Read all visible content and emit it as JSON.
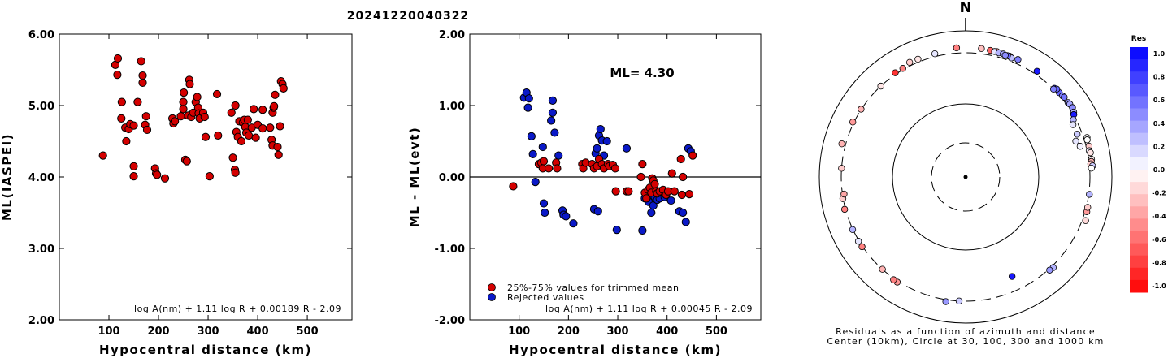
{
  "title": "20241220040322",
  "colors": {
    "accepted": "#d40000",
    "rejected": "#0a19c8",
    "res_pos": "#0000ff",
    "res_neg": "#ff0000"
  },
  "chart_data": [
    {
      "type": "scatter",
      "ylabel": "ML(IASPEI)",
      "xlabel": "Hypocentral distance (km)",
      "xlim": [
        0,
        590
      ],
      "ylim": [
        2.0,
        6.0
      ],
      "xticks": [
        "100",
        "200",
        "300",
        "400",
        "500"
      ],
      "yticks": [
        "2.00",
        "3.00",
        "4.00",
        "5.00",
        "6.00"
      ],
      "formula": "log A(nm) + 1.11 log R + 0.00189 R - 2.09",
      "points": [
        [
          88,
          4.3
        ],
        [
          113,
          5.57
        ],
        [
          118,
          5.66
        ],
        [
          117,
          5.43
        ],
        [
          126,
          5.05
        ],
        [
          125,
          4.82
        ],
        [
          133,
          4.69
        ],
        [
          135,
          4.5
        ],
        [
          140,
          4.67
        ],
        [
          143,
          4.74
        ],
        [
          150,
          4.72
        ],
        [
          150,
          4.15
        ],
        [
          150,
          4.01
        ],
        [
          158,
          5.05
        ],
        [
          165,
          5.62
        ],
        [
          168,
          5.42
        ],
        [
          168,
          5.32
        ],
        [
          175,
          4.85
        ],
        [
          173,
          4.73
        ],
        [
          177,
          4.66
        ],
        [
          193,
          4.12
        ],
        [
          195,
          4.05
        ],
        [
          197,
          4.03
        ],
        [
          213,
          3.98
        ],
        [
          228,
          4.82
        ],
        [
          230,
          4.75
        ],
        [
          233,
          4.78
        ],
        [
          245,
          4.85
        ],
        [
          250,
          5.05
        ],
        [
          250,
          4.95
        ],
        [
          251,
          5.18
        ],
        [
          254,
          4.24
        ],
        [
          257,
          4.22
        ],
        [
          262,
          5.36
        ],
        [
          263,
          5.3
        ],
        [
          260,
          4.86
        ],
        [
          266,
          4.84
        ],
        [
          270,
          4.9
        ],
        [
          275,
          5.05
        ],
        [
          278,
          5.12
        ],
        [
          280,
          4.97
        ],
        [
          281,
          4.89
        ],
        [
          283,
          4.82
        ],
        [
          290,
          4.9
        ],
        [
          293,
          4.84
        ],
        [
          295,
          4.56
        ],
        [
          303,
          4.01
        ],
        [
          318,
          5.16
        ],
        [
          320,
          4.58
        ],
        [
          347,
          4.9
        ],
        [
          350,
          4.27
        ],
        [
          354,
          4.1
        ],
        [
          355,
          4.06
        ],
        [
          355,
          5.0
        ],
        [
          357,
          4.63
        ],
        [
          360,
          4.56
        ],
        [
          363,
          4.78
        ],
        [
          367,
          4.5
        ],
        [
          370,
          4.76
        ],
        [
          373,
          4.8
        ],
        [
          375,
          4.7
        ],
        [
          377,
          4.62
        ],
        [
          380,
          4.8
        ],
        [
          382,
          4.58
        ],
        [
          388,
          4.69
        ],
        [
          392,
          4.95
        ],
        [
          396,
          4.55
        ],
        [
          400,
          4.73
        ],
        [
          410,
          4.94
        ],
        [
          410,
          4.68
        ],
        [
          425,
          4.69
        ],
        [
          428,
          4.52
        ],
        [
          430,
          4.9
        ],
        [
          430,
          4.44
        ],
        [
          432,
          4.97
        ],
        [
          433,
          4.99
        ],
        [
          435,
          5.15
        ],
        [
          440,
          4.42
        ],
        [
          442,
          4.31
        ],
        [
          445,
          4.71
        ],
        [
          447,
          5.34
        ],
        [
          450,
          5.3
        ],
        [
          452,
          5.24
        ]
      ]
    },
    {
      "type": "scatter",
      "ylabel": "ML - ML(evt)",
      "xlabel": "Hypocentral distance (km)",
      "xlim": [
        0,
        590
      ],
      "ylim": [
        -2.0,
        2.0
      ],
      "xticks": [
        "100",
        "200",
        "300",
        "400",
        "500"
      ],
      "yticks": [
        "-2.00",
        "-1.00",
        "0.00",
        "1.00",
        "2.00"
      ],
      "ml_label": "ML=  4.30",
      "legend": [
        "25%-75% values for trimmed mean",
        "Rejected values"
      ],
      "formula": "log A(nm) + 1.11 log R + 0.00045 R - 2.09",
      "accepted": [
        [
          88,
          -0.13
        ],
        [
          140,
          0.18
        ],
        [
          145,
          0.2
        ],
        [
          150,
          0.22
        ],
        [
          148,
          0.12
        ],
        [
          160,
          0.12
        ],
        [
          175,
          0.2
        ],
        [
          177,
          0.12
        ],
        [
          228,
          0.18
        ],
        [
          230,
          0.12
        ],
        [
          235,
          0.2
        ],
        [
          248,
          0.18
        ],
        [
          252,
          0.12
        ],
        [
          258,
          0.15
        ],
        [
          262,
          0.25
        ],
        [
          268,
          0.18
        ],
        [
          272,
          0.12
        ],
        [
          280,
          0.18
        ],
        [
          283,
          0.15
        ],
        [
          290,
          0.17
        ],
        [
          295,
          0.12
        ],
        [
          296,
          -0.2
        ],
        [
          318,
          -0.2
        ],
        [
          322,
          -0.2
        ],
        [
          347,
          0.0
        ],
        [
          350,
          0.18
        ],
        [
          355,
          -0.22
        ],
        [
          358,
          -0.3
        ],
        [
          362,
          -0.18
        ],
        [
          365,
          -0.15
        ],
        [
          368,
          -0.22
        ],
        [
          370,
          -0.02
        ],
        [
          372,
          -0.05
        ],
        [
          375,
          -0.1
        ],
        [
          378,
          -0.2
        ],
        [
          380,
          -0.23
        ],
        [
          385,
          -0.2
        ],
        [
          392,
          -0.18
        ],
        [
          398,
          -0.25
        ],
        [
          402,
          -0.2
        ],
        [
          410,
          0.05
        ],
        [
          415,
          -0.2
        ],
        [
          428,
          0.25
        ],
        [
          430,
          -0.25
        ],
        [
          432,
          0.0
        ],
        [
          445,
          -0.24
        ],
        [
          452,
          0.3
        ]
      ],
      "rejected": [
        [
          110,
          1.11
        ],
        [
          115,
          1.18
        ],
        [
          118,
          0.97
        ],
        [
          120,
          1.1
        ],
        [
          125,
          0.57
        ],
        [
          128,
          0.32
        ],
        [
          133,
          -0.07
        ],
        [
          148,
          0.42
        ],
        [
          150,
          -0.37
        ],
        [
          152,
          -0.5
        ],
        [
          165,
          0.79
        ],
        [
          168,
          1.07
        ],
        [
          168,
          0.9
        ],
        [
          172,
          0.62
        ],
        [
          180,
          0.3
        ],
        [
          188,
          -0.47
        ],
        [
          190,
          -0.53
        ],
        [
          195,
          -0.55
        ],
        [
          210,
          -0.65
        ],
        [
          252,
          -0.45
        ],
        [
          255,
          0.33
        ],
        [
          258,
          0.4
        ],
        [
          260,
          -0.48
        ],
        [
          262,
          0.58
        ],
        [
          265,
          0.67
        ],
        [
          268,
          0.51
        ],
        [
          272,
          0.3
        ],
        [
          278,
          0.5
        ],
        [
          298,
          -0.74
        ],
        [
          318,
          0.4
        ],
        [
          350,
          -0.75
        ],
        [
          355,
          -0.3
        ],
        [
          360,
          -0.28
        ],
        [
          363,
          -0.35
        ],
        [
          368,
          -0.5
        ],
        [
          372,
          -0.4
        ],
        [
          375,
          -0.28
        ],
        [
          380,
          -0.32
        ],
        [
          385,
          -0.3
        ],
        [
          395,
          -0.28
        ],
        [
          408,
          -0.33
        ],
        [
          425,
          -0.48
        ],
        [
          432,
          -0.5
        ],
        [
          438,
          -0.63
        ],
        [
          443,
          0.4
        ],
        [
          448,
          0.36
        ]
      ]
    },
    {
      "type": "polar-scatter",
      "north_label": "N",
      "caption_lines": [
        "Residuals as a function of azimuth and distance",
        "Center (10km), Circle at 30, 100, 300 and 1000 km"
      ],
      "circles_km": [
        30,
        100,
        300,
        1000
      ],
      "colorbar": {
        "title": "Res",
        "ticks": [
          "1.0",
          "0.8",
          "0.6",
          "0.4",
          "0.2",
          "0.0",
          "-0.2",
          "-0.4",
          "-0.6",
          "-0.8",
          "-1.0"
        ]
      },
      "stations": [
        [
          -22,
          350,
          -0.1
        ],
        [
          -14,
          350,
          0.1
        ],
        [
          -26,
          360,
          -0.2
        ],
        [
          -4,
          400,
          -0.5
        ],
        [
          7,
          400,
          -0.25
        ],
        [
          11,
          390,
          -0.6
        ],
        [
          14,
          395,
          -0.4
        ],
        [
          20,
          380,
          -0.3
        ],
        [
          21,
          360,
          0.25
        ],
        [
          13,
          385,
          0.1
        ],
        [
          15,
          380,
          0.3
        ],
        [
          17,
          382,
          0.35
        ],
        [
          19,
          375,
          0.6
        ],
        [
          18,
          370,
          0.45
        ],
        [
          24,
          380,
          0.5
        ],
        [
          34,
          360,
          0.9
        ],
        [
          45,
          320,
          0.8
        ],
        [
          48,
          330,
          0.6
        ],
        [
          50,
          335,
          0.5
        ],
        [
          51,
          345,
          0.55
        ],
        [
          54,
          340,
          0.4
        ],
        [
          55,
          350,
          0.35
        ],
        [
          57,
          355,
          0.45
        ],
        [
          59,
          330,
          0.3
        ],
        [
          46,
          340,
          0.6
        ],
        [
          45,
          300,
          0.5
        ],
        [
          60,
          310,
          0.9
        ],
        [
          62,
          285,
          0.3
        ],
        [
          64,
          270,
          0.1
        ],
        [
          69,
          270,
          0.2
        ],
        [
          72,
          360,
          0.0
        ],
        [
          73,
          350,
          0.0
        ],
        [
          76,
          350,
          -0.2
        ],
        [
          78,
          335,
          0.05
        ],
        [
          79,
          350,
          -0.1
        ],
        [
          82,
          350,
          -0.05
        ],
        [
          83,
          340,
          -0.3
        ],
        [
          84,
          325,
          -0.2
        ],
        [
          85,
          355,
          0.2
        ],
        [
          86,
          330,
          0.0
        ],
        [
          72,
          250,
          0.1
        ],
        [
          75,
          265,
          0.05
        ],
        [
          98,
          310,
          0.3
        ],
        [
          106,
          330,
          -0.4
        ],
        [
          104,
          325,
          -0.2
        ],
        [
          110,
          360,
          -0.15
        ],
        [
          136,
          330,
          0.3
        ],
        [
          138,
          320,
          0.4
        ],
        [
          155,
          220,
          0.9
        ],
        [
          183,
          300,
          0.2
        ],
        [
          189,
          335,
          0.4
        ],
        [
          213,
          320,
          -0.4
        ],
        [
          215,
          322,
          -0.5
        ],
        [
          222,
          300,
          -0.3
        ],
        [
          236,
          310,
          -0.5
        ],
        [
          239,
          312,
          0.1
        ],
        [
          245,
          305,
          0.3
        ],
        [
          255,
          315,
          -0.5
        ],
        [
          260,
          305,
          -0.2
        ],
        [
          262,
          290,
          -0.35
        ],
        [
          274,
          300,
          -0.2
        ],
        [
          285,
          370,
          -0.3
        ],
        [
          296,
          320,
          -0.4
        ],
        [
          303,
          305,
          -0.3
        ],
        [
          326,
          325,
          -0.8
        ],
        [
          330,
          320,
          -0.5
        ],
        [
          317,
          300,
          -0.1
        ]
      ]
    }
  ]
}
